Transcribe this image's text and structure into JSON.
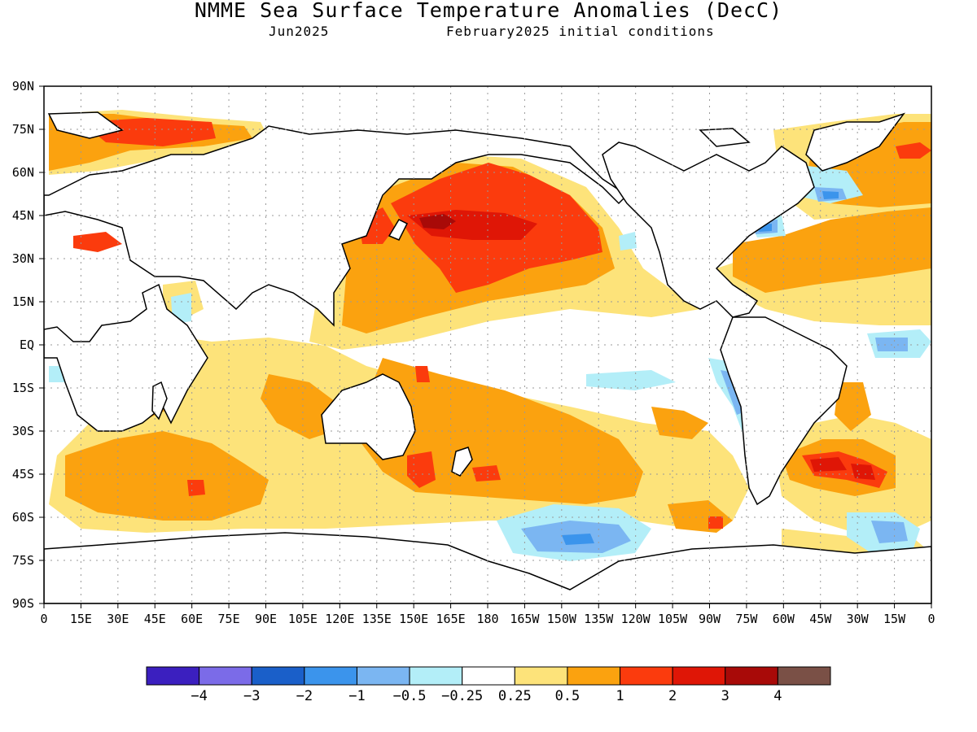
{
  "title": "NMME Sea Surface Temperature Anomalies (DecC)",
  "subtitle_left": "Jun2025",
  "subtitle_right": "February2025 initial conditions",
  "lat_labels": [
    "90N",
    "75N",
    "60N",
    "45N",
    "30N",
    "15N",
    "EQ",
    "15S",
    "30S",
    "45S",
    "60S",
    "75S",
    "90S"
  ],
  "lon_labels": [
    "0",
    "15E",
    "30E",
    "45E",
    "60E",
    "75E",
    "90E",
    "105E",
    "120E",
    "135E",
    "150E",
    "165E",
    "180",
    "165W",
    "150W",
    "135W",
    "120W",
    "105W",
    "90W",
    "75W",
    "60W",
    "45W",
    "30W",
    "15W",
    "0"
  ],
  "colorbar": {
    "colors": [
      "#3b1fbf",
      "#7b6be8",
      "#1a5fc9",
      "#3b94ec",
      "#7bb6f2",
      "#b3eef8",
      "#ffffff",
      "#fde37a",
      "#fba20f",
      "#fb3b0d",
      "#df1606",
      "#a80a08",
      "#7a5046"
    ],
    "labels": [
      "-4",
      "-3",
      "-2",
      "-1",
      "-0.5",
      "-0.25",
      "0.25",
      "0.5",
      "1",
      "2",
      "3",
      "4"
    ]
  }
}
